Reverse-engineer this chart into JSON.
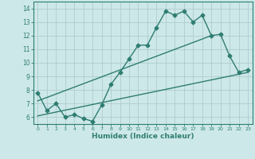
{
  "title": "",
  "xlabel": "Humidex (Indice chaleur)",
  "ylabel": "",
  "bg_color": "#cde8e8",
  "line_color": "#2e7d72",
  "grid_color": "#b0cccc",
  "xlim": [
    -0.5,
    23.5
  ],
  "ylim": [
    5.5,
    14.5
  ],
  "xticks": [
    0,
    1,
    2,
    3,
    4,
    5,
    6,
    7,
    8,
    9,
    10,
    11,
    12,
    13,
    14,
    15,
    16,
    17,
    18,
    19,
    20,
    21,
    22,
    23
  ],
  "yticks": [
    6,
    7,
    8,
    9,
    10,
    11,
    12,
    13,
    14
  ],
  "series1_x": [
    0,
    1,
    2,
    3,
    4,
    5,
    6,
    7,
    8,
    9,
    10,
    11,
    12,
    13,
    14,
    15,
    16,
    17,
    18,
    19,
    20,
    21,
    22,
    23
  ],
  "series1_y": [
    7.8,
    6.5,
    7.0,
    6.0,
    6.2,
    5.9,
    5.7,
    6.9,
    8.4,
    9.3,
    10.3,
    11.3,
    11.3,
    12.6,
    13.8,
    13.5,
    13.8,
    13.0,
    13.5,
    12.0,
    12.1,
    10.5,
    9.3,
    9.5
  ],
  "series2_x": [
    0,
    19
  ],
  "series2_y": [
    7.2,
    12.0
  ],
  "series3_x": [
    0,
    23
  ],
  "series3_y": [
    6.1,
    9.3
  ],
  "marker_size": 2.5,
  "line_width": 1.0
}
